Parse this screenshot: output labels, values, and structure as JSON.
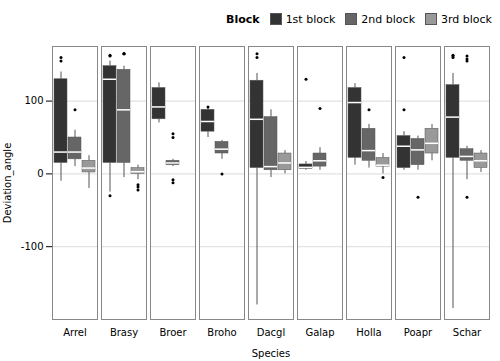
{
  "chart_data": {
    "type": "box",
    "xlabel": "Species",
    "ylabel": "Deviation_angle",
    "legend_title": "Block",
    "legend": "upper right",
    "grid": true,
    "ylim": [
      -200,
      175
    ],
    "yticks": [
      -100,
      0,
      100
    ],
    "categories": [
      "Arrel",
      "Brasy",
      "Broer",
      "Broho",
      "Dacgl",
      "Galap",
      "Holla",
      "Poapr",
      "Schar"
    ],
    "series": [
      {
        "name": "1st block",
        "color": "#333333",
        "values": [
          {
            "whislo": -10,
            "q1": 15,
            "med": 30,
            "q3": 130,
            "whishi": 140,
            "fliers_low": [],
            "fliers_high": [
              155,
              160
            ]
          },
          {
            "whislo": -25,
            "q1": 15,
            "med": 130,
            "q3": 148,
            "whishi": 155,
            "fliers_low": [
              -30
            ],
            "fliers_high": [
              162,
              163
            ]
          },
          {
            "whislo": 70,
            "q1": 75,
            "med": 92,
            "q3": 118,
            "whishi": 125,
            "fliers_low": [],
            "fliers_high": []
          },
          {
            "whislo": 50,
            "q1": 58,
            "med": 72,
            "q3": 88,
            "whishi": 92,
            "fliers_low": [],
            "fliers_high": [
              92
            ]
          },
          {
            "whislo": -180,
            "q1": 8,
            "med": 75,
            "q3": 128,
            "whishi": 138,
            "fliers_low": [],
            "fliers_high": [
              160,
              165
            ]
          },
          {
            "whislo": 5,
            "q1": 7,
            "med": 9,
            "q3": 13,
            "whishi": 17,
            "fliers_low": [],
            "fliers_high": [
              130
            ]
          },
          {
            "whislo": 12,
            "q1": 22,
            "med": 98,
            "q3": 118,
            "whishi": 124,
            "fliers_low": [],
            "fliers_high": []
          },
          {
            "whislo": 5,
            "q1": 8,
            "med": 38,
            "q3": 52,
            "whishi": 58,
            "fliers_low": [],
            "fliers_high": [
              88,
              160
            ]
          },
          {
            "whislo": -185,
            "q1": 22,
            "med": 78,
            "q3": 122,
            "whishi": 138,
            "fliers_low": [],
            "fliers_high": [
              160,
              162,
              163
            ]
          }
        ]
      },
      {
        "name": "2nd block",
        "color": "#666666",
        "values": [
          {
            "whislo": 10,
            "q1": 20,
            "med": 30,
            "q3": 50,
            "whishi": 60,
            "fliers_low": [],
            "fliers_high": [
              88
            ]
          },
          {
            "whislo": -5,
            "q1": 15,
            "med": 88,
            "q3": 143,
            "whishi": 148,
            "fliers_low": [],
            "fliers_high": [
              165,
              165,
              165
            ]
          },
          {
            "whislo": 10,
            "q1": 12,
            "med": 15,
            "q3": 18,
            "whishi": 20,
            "fliers_low": [
              -8,
              -12
            ],
            "fliers_high": [
              50,
              55
            ]
          },
          {
            "whislo": 20,
            "q1": 28,
            "med": 34,
            "q3": 44,
            "whishi": 46,
            "fliers_low": [
              0
            ],
            "fliers_high": []
          },
          {
            "whislo": -5,
            "q1": 5,
            "med": 10,
            "q3": 78,
            "whishi": 88,
            "fliers_low": [],
            "fliers_high": []
          },
          {
            "whislo": 5,
            "q1": 10,
            "med": 18,
            "q3": 28,
            "whishi": 36,
            "fliers_low": [],
            "fliers_high": [
              90
            ]
          },
          {
            "whislo": 8,
            "q1": 18,
            "med": 32,
            "q3": 62,
            "whishi": 68,
            "fliers_low": [],
            "fliers_high": [
              88
            ]
          },
          {
            "whislo": 5,
            "q1": 12,
            "med": 33,
            "q3": 48,
            "whishi": 52,
            "fliers_low": [
              -32
            ],
            "fliers_high": []
          },
          {
            "whislo": -8,
            "q1": 18,
            "med": 24,
            "q3": 34,
            "whishi": 38,
            "fliers_low": [
              -32
            ],
            "fliers_high": [
              155,
              158,
              162
            ]
          }
        ]
      },
      {
        "name": "3rd block",
        "color": "#999999",
        "values": [
          {
            "whislo": -20,
            "q1": 2,
            "med": 8,
            "q3": 18,
            "whishi": 25,
            "fliers_low": [],
            "fliers_high": []
          },
          {
            "whislo": -8,
            "q1": 0,
            "med": 3,
            "q3": 8,
            "whishi": 12,
            "fliers_low": [
              -15,
              -18,
              -22
            ],
            "fliers_high": []
          },
          null,
          null,
          {
            "whislo": 0,
            "q1": 5,
            "med": 15,
            "q3": 28,
            "whishi": 32,
            "fliers_low": [],
            "fliers_high": []
          },
          null,
          {
            "whislo": 0,
            "q1": 10,
            "med": 12,
            "q3": 22,
            "whishi": 28,
            "fliers_low": [
              -5
            ],
            "fliers_high": []
          },
          {
            "whislo": 18,
            "q1": 28,
            "med": 42,
            "q3": 62,
            "whishi": 68,
            "fliers_low": [],
            "fliers_high": []
          },
          {
            "whislo": 2,
            "q1": 8,
            "med": 18,
            "q3": 28,
            "whishi": 32,
            "fliers_low": [],
            "fliers_high": []
          }
        ]
      }
    ]
  }
}
